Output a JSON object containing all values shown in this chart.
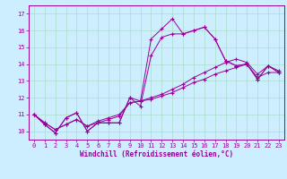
{
  "xlabel": "Windchill (Refroidissement éolien,°C)",
  "bg_color": "#cceeff",
  "line_color": "#990099",
  "grid_color": "#aaddcc",
  "xlim": [
    -0.5,
    23.5
  ],
  "ylim": [
    9.5,
    17.5
  ],
  "yticks": [
    10,
    11,
    12,
    13,
    14,
    15,
    16,
    17
  ],
  "xticks": [
    0,
    1,
    2,
    3,
    4,
    5,
    6,
    7,
    8,
    9,
    10,
    11,
    12,
    13,
    14,
    15,
    16,
    17,
    18,
    19,
    20,
    21,
    22,
    23
  ],
  "series1_x": [
    0,
    1,
    2,
    3,
    4,
    5,
    6,
    7,
    8,
    9,
    10,
    11,
    12,
    13,
    14,
    15,
    16,
    17,
    18,
    19,
    20,
    21,
    22,
    23
  ],
  "series1_y": [
    11.0,
    10.4,
    9.9,
    10.8,
    11.1,
    10.0,
    10.5,
    10.5,
    10.5,
    12.0,
    11.8,
    15.5,
    16.1,
    16.7,
    15.8,
    16.0,
    16.2,
    15.5,
    14.2,
    13.9,
    14.0,
    13.1,
    13.9,
    13.5
  ],
  "series2_x": [
    0,
    1,
    2,
    3,
    4,
    5,
    6,
    7,
    8,
    9,
    10,
    11,
    12,
    13,
    14,
    15,
    16,
    17,
    18,
    19,
    20,
    21,
    22,
    23
  ],
  "series2_y": [
    11.0,
    10.4,
    9.9,
    10.8,
    11.1,
    10.0,
    10.5,
    10.5,
    10.5,
    12.0,
    11.5,
    14.5,
    15.6,
    15.8,
    15.8,
    16.0,
    16.2,
    15.5,
    14.2,
    13.9,
    14.0,
    13.1,
    13.9,
    13.5
  ],
  "series3_x": [
    0,
    1,
    2,
    3,
    4,
    5,
    6,
    7,
    8,
    9,
    10,
    11,
    12,
    13,
    14,
    15,
    16,
    17,
    18,
    19,
    20,
    21,
    22,
    23
  ],
  "series3_y": [
    11.0,
    10.5,
    10.1,
    10.4,
    10.7,
    10.3,
    10.5,
    10.7,
    10.9,
    11.7,
    11.8,
    11.9,
    12.1,
    12.3,
    12.6,
    12.9,
    13.1,
    13.4,
    13.6,
    13.8,
    14.0,
    13.2,
    13.5,
    13.5
  ],
  "series4_x": [
    0,
    1,
    2,
    3,
    4,
    5,
    6,
    7,
    8,
    9,
    10,
    11,
    12,
    13,
    14,
    15,
    16,
    17,
    18,
    19,
    20,
    21,
    22,
    23
  ],
  "series4_y": [
    11.0,
    10.5,
    10.1,
    10.4,
    10.7,
    10.3,
    10.6,
    10.8,
    11.0,
    11.7,
    11.8,
    12.0,
    12.2,
    12.5,
    12.8,
    13.2,
    13.5,
    13.8,
    14.1,
    14.3,
    14.1,
    13.4,
    13.9,
    13.6
  ],
  "tick_fontsize": 5,
  "xlabel_fontsize": 5.5
}
